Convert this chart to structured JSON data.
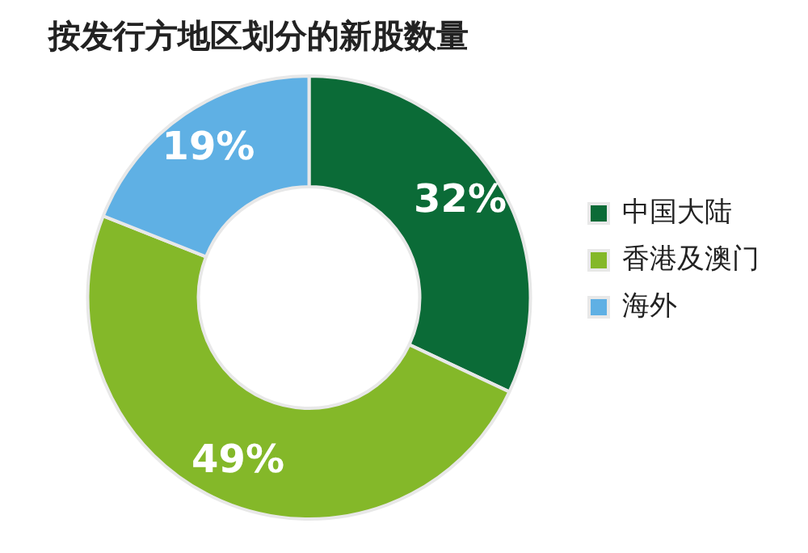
{
  "chart_data": {
    "type": "donut",
    "title": "按发行方地区划分的新股数量",
    "categories": [
      "中国大陆",
      "香港及澳门",
      "海外"
    ],
    "values": [
      32,
      49,
      19
    ],
    "colors": [
      "#0b6b37",
      "#84b829",
      "#5fb0e4"
    ],
    "value_labels": [
      "32%",
      "49%",
      "19%"
    ],
    "legend": "right"
  }
}
